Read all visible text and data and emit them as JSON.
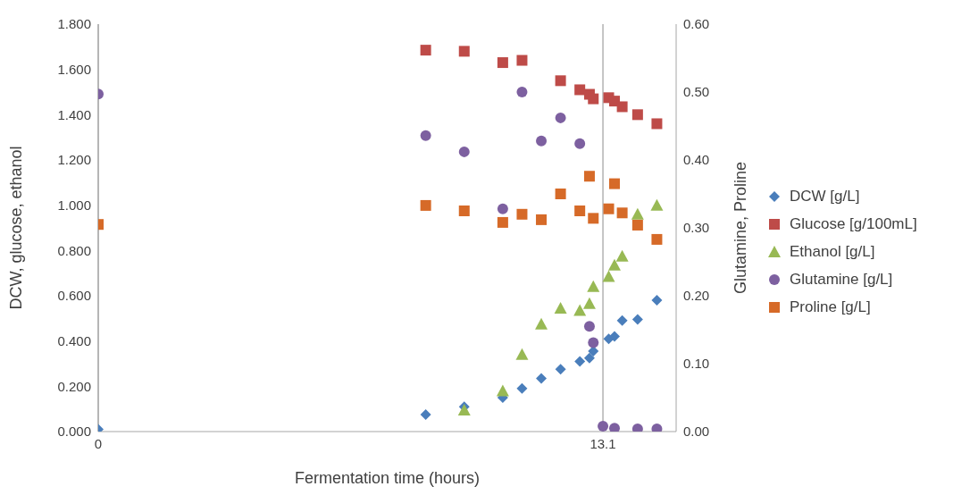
{
  "chart_data": {
    "type": "scatter",
    "xlabel": "Fermentation time (hours)",
    "ylabel": "DCW, glucose, ethanol",
    "y2label": "Glutamine, Proline",
    "xlim": [
      0,
      15
    ],
    "xticks": [
      0,
      13.1
    ],
    "ylim": [
      0,
      1.8
    ],
    "yticks": [
      {
        "value": 0,
        "label": "0.000"
      },
      {
        "value": 0.2,
        "label": "0.200"
      },
      {
        "value": 0.4,
        "label": "0.400"
      },
      {
        "value": 0.6,
        "label": "0.600"
      },
      {
        "value": 0.8,
        "label": "0.800"
      },
      {
        "value": 1,
        "label": "1.000"
      },
      {
        "value": 1.2,
        "label": "1.200"
      },
      {
        "value": 1.4,
        "label": "1.400"
      },
      {
        "value": 1.6,
        "label": "1.600"
      },
      {
        "value": 1.8,
        "label": "1.800"
      }
    ],
    "y2lim": [
      0,
      0.6
    ],
    "y2ticks": [
      {
        "value": 0,
        "label": "0.00"
      },
      {
        "value": 0.1,
        "label": "0.10"
      },
      {
        "value": 0.2,
        "label": "0.20"
      },
      {
        "value": 0.3,
        "label": "0.30"
      },
      {
        "value": 0.4,
        "label": "0.40"
      },
      {
        "value": 0.5,
        "label": "0.50"
      },
      {
        "value": 0.6,
        "label": "0.60"
      }
    ],
    "grid": true,
    "legend": "right",
    "series": [
      {
        "name": "DCW [g/L]",
        "color": "#4a7ebb",
        "marker": "diamond",
        "x": [
          0,
          8.5,
          9.5,
          10.5,
          11,
          11.5,
          12,
          12.5,
          12.75,
          12.85,
          13.25,
          13.4,
          13.6,
          14,
          14.5
        ],
        "values": [
          0.01,
          0.075,
          0.11,
          0.15,
          0.19,
          0.235,
          0.275,
          0.31,
          0.325,
          0.355,
          0.41,
          0.42,
          0.49,
          0.495,
          0.58
        ]
      },
      {
        "name": "Glucose [g/100mL]",
        "color": "#be4b48",
        "marker": "square",
        "x": [
          8.5,
          9.5,
          10.5,
          11,
          12,
          12.5,
          12.75,
          12.85,
          13.25,
          13.4,
          13.6,
          14,
          14.5
        ],
        "values": [
          1.685,
          1.68,
          1.63,
          1.64,
          1.55,
          1.51,
          1.49,
          1.47,
          1.475,
          1.46,
          1.435,
          1.4,
          1.36
        ]
      },
      {
        "name": "Ethanol [g/L]",
        "color": "#98b954",
        "marker": "triangle",
        "x": [
          9.5,
          10.5,
          11,
          11.5,
          12,
          12.5,
          12.75,
          12.85,
          13.25,
          13.4,
          13.6,
          14,
          14.5
        ],
        "values": [
          0.095,
          0.18,
          0.34,
          0.475,
          0.545,
          0.535,
          0.565,
          0.64,
          0.685,
          0.735,
          0.775,
          0.96,
          1.0
        ]
      },
      {
        "name": "Glutamine [g/L]",
        "color": "#7d60a0",
        "marker": "circle",
        "axis": "y2",
        "x": [
          0,
          8.5,
          9.5,
          10.5,
          11,
          11.5,
          12,
          12.5,
          12.75,
          12.85,
          13.1,
          13.4,
          14,
          14.5
        ],
        "values": [
          0.497,
          0.436,
          0.412,
          0.328,
          0.5,
          0.428,
          0.462,
          0.424,
          0.155,
          0.131,
          0.008,
          0.005,
          0.004,
          0.004
        ]
      },
      {
        "name": "Proline [g/L]",
        "color": "#d66a28",
        "marker": "square",
        "axis": "y2",
        "x": [
          0,
          8.5,
          9.5,
          10.5,
          11,
          11.5,
          12,
          12.5,
          12.75,
          12.85,
          13.25,
          13.4,
          13.6,
          14,
          14.5
        ],
        "values": [
          0.305,
          0.333,
          0.325,
          0.308,
          0.32,
          0.312,
          0.35,
          0.325,
          0.376,
          0.314,
          0.328,
          0.365,
          0.322,
          0.304,
          0.283
        ]
      }
    ]
  }
}
